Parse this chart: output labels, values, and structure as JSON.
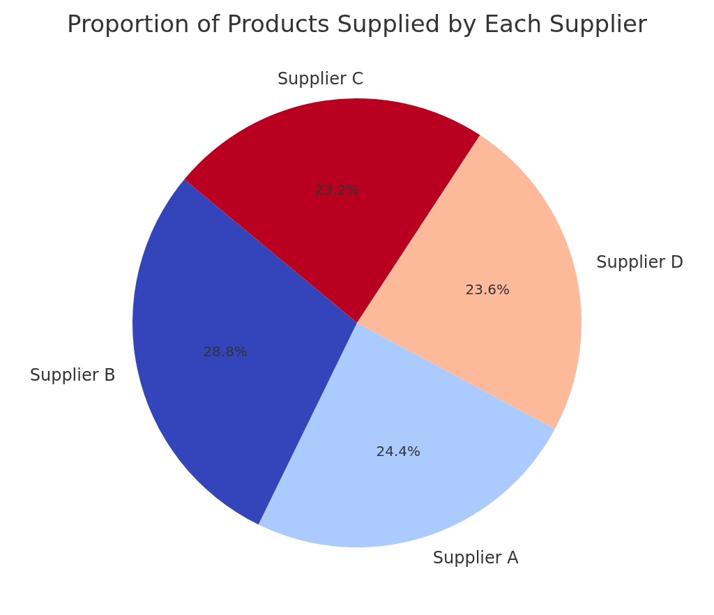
{
  "chart_data": {
    "type": "pie",
    "title": "Proportion of Products Supplied by Each Supplier",
    "categories": [
      "Supplier A",
      "Supplier B",
      "Supplier C",
      "Supplier D"
    ],
    "values": [
      24.4,
      28.8,
      23.2,
      23.6
    ],
    "colors": [
      "#abcbfe",
      "#3445bb",
      "#ba0021",
      "#fcba9a"
    ],
    "value_labels": [
      "24.4%",
      "28.8%",
      "23.2%",
      "23.6%"
    ],
    "legend": false
  }
}
